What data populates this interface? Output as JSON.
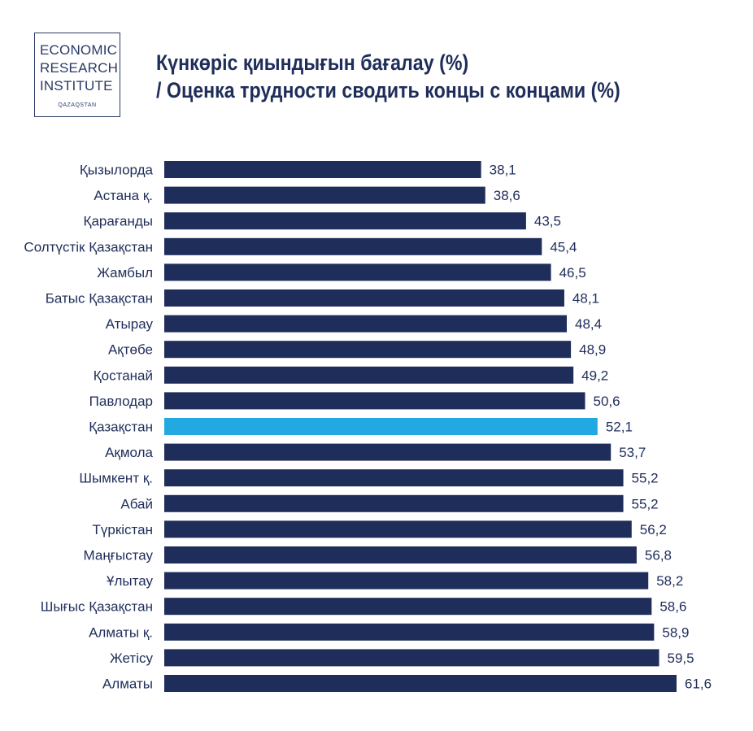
{
  "logo": {
    "line1": "ECONOMIC",
    "line2": "RESEARCH",
    "line3": "INSTITUTE",
    "sub": "QAZAQSTAN"
  },
  "colors": {
    "bar": "#1f2d5a",
    "highlight": "#22a9e1",
    "text": "#1f2d5a"
  },
  "chart_data": {
    "type": "bar",
    "orientation": "horizontal",
    "title": "Күнкөріс қиындығын бағалау (%)",
    "subtitle": "/ Оценка трудности сводить концы с концами (%)",
    "categories": [
      "Қызылорда",
      "Астана қ.",
      "Қарағанды",
      "Солтүстік Қазақстан",
      "Жамбыл",
      "Батыс Қазақстан",
      "Атырау",
      "Ақтөбе",
      "Қостанай",
      "Павлодар",
      "Қазақстан",
      "Ақмола",
      "Шымкент қ.",
      "Абай",
      "Түркістан",
      "Маңғыстау",
      "Ұлытау",
      "Шығыс Қазақстан",
      "Алматы қ.",
      "Жетісу",
      "Алматы"
    ],
    "values": [
      38.1,
      38.6,
      43.5,
      45.4,
      46.5,
      48.1,
      48.4,
      48.9,
      49.2,
      50.6,
      52.1,
      53.7,
      55.2,
      55.2,
      56.2,
      56.8,
      58.2,
      58.6,
      58.9,
      59.5,
      61.6
    ],
    "value_labels": [
      "38,1",
      "38,6",
      "43,5",
      "45,4",
      "46,5",
      "48,1",
      "48,4",
      "48,9",
      "49,2",
      "50,6",
      "52,1",
      "53,7",
      "55,2",
      "55,2",
      "56,2",
      "56,8",
      "58,2",
      "58,6",
      "58,9",
      "59,5",
      "61,6"
    ],
    "highlight_category": "Қазақстан",
    "xlim": [
      0,
      61.6
    ],
    "grid": false,
    "legend": false
  }
}
